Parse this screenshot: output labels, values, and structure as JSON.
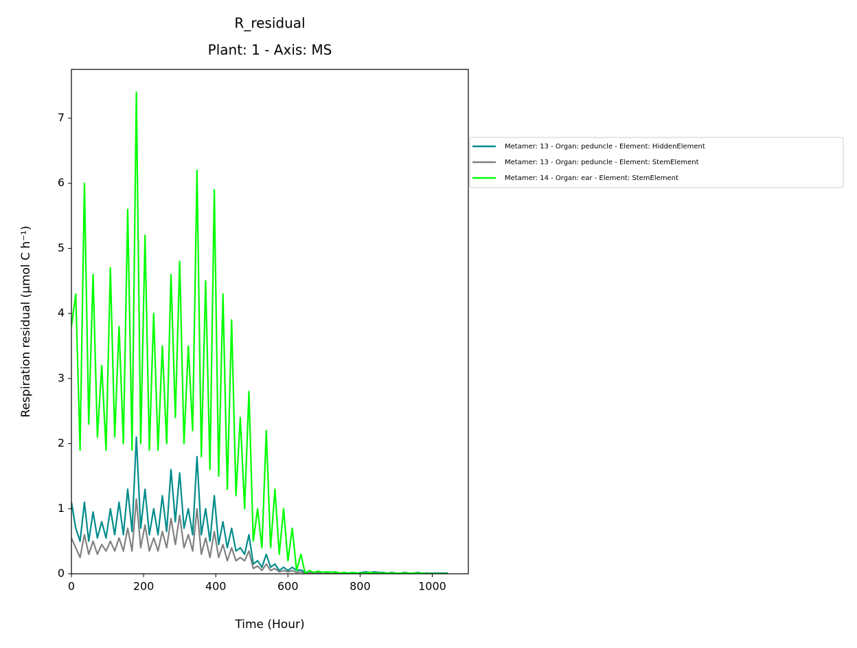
{
  "chart_data": {
    "type": "line",
    "title": "R_residual",
    "subtitle": "Plant: 1 - Axis: MS",
    "x_label": "Time (Hour)",
    "y_label": "Respiration residual (µmol C h⁻¹)",
    "xlim": [
      0,
      1100
    ],
    "ylim": [
      0,
      7.75
    ],
    "xticks": [
      0,
      200,
      400,
      600,
      800,
      1000
    ],
    "yticks": [
      0,
      1,
      2,
      3,
      4,
      5,
      6,
      7
    ],
    "grid": false,
    "legend": "right",
    "x": [
      0,
      12,
      24,
      36,
      48,
      60,
      72,
      84,
      96,
      108,
      120,
      132,
      144,
      156,
      168,
      180,
      192,
      204,
      216,
      228,
      240,
      252,
      264,
      276,
      288,
      300,
      312,
      324,
      336,
      348,
      360,
      372,
      384,
      396,
      408,
      420,
      432,
      444,
      456,
      468,
      480,
      492,
      504,
      516,
      528,
      540,
      552,
      564,
      576,
      588,
      600,
      612,
      624,
      636,
      648,
      660,
      672,
      684,
      696,
      708,
      720,
      732,
      744,
      756,
      768,
      780,
      792,
      804,
      816,
      828,
      840,
      852,
      864,
      876,
      888,
      900,
      912,
      924,
      936,
      948,
      960,
      972,
      984,
      996,
      1008,
      1020,
      1032,
      1044
    ],
    "series": [
      {
        "name": "Metamer: 13 - Organ: peduncle - Element: HiddenElement",
        "color": "#008b8b",
        "values": [
          1.1,
          0.7,
          0.5,
          1.1,
          0.5,
          0.95,
          0.55,
          0.8,
          0.55,
          1.0,
          0.6,
          1.1,
          0.6,
          1.3,
          0.65,
          2.1,
          0.7,
          1.3,
          0.6,
          1.0,
          0.6,
          1.2,
          0.65,
          1.6,
          0.8,
          1.55,
          0.7,
          1.0,
          0.6,
          1.8,
          0.6,
          1.0,
          0.5,
          1.2,
          0.45,
          0.8,
          0.4,
          0.7,
          0.35,
          0.4,
          0.3,
          0.6,
          0.15,
          0.2,
          0.1,
          0.3,
          0.1,
          0.15,
          0.05,
          0.1,
          0.05,
          0.1,
          0.05,
          0.06,
          0.02,
          0.04,
          0.02,
          0.03,
          0.02,
          0.03,
          0.02,
          0.03,
          0.01,
          0.02,
          0.01,
          0.02,
          0.01,
          0.02,
          0.03,
          0.02,
          0.03,
          0.02,
          0.02,
          0.01,
          0.02,
          0.01,
          0.01,
          0.02,
          0.01,
          0.01,
          0.02,
          0.01,
          0.01,
          0.01,
          0.01,
          0.01,
          0.01,
          0.01
        ]
      },
      {
        "name": "Metamer: 13 - Organ: peduncle - Element: StemElement",
        "color": "#808080",
        "values": [
          0.55,
          0.4,
          0.25,
          0.6,
          0.3,
          0.5,
          0.3,
          0.45,
          0.35,
          0.5,
          0.35,
          0.55,
          0.35,
          0.7,
          0.35,
          1.15,
          0.4,
          0.75,
          0.35,
          0.55,
          0.35,
          0.65,
          0.4,
          0.85,
          0.45,
          0.9,
          0.4,
          0.6,
          0.35,
          1.0,
          0.3,
          0.55,
          0.25,
          0.65,
          0.25,
          0.45,
          0.2,
          0.4,
          0.2,
          0.25,
          0.2,
          0.35,
          0.08,
          0.12,
          0.05,
          0.15,
          0.05,
          0.08,
          0.03,
          0.05,
          0.03,
          0.05,
          0.02,
          0.03,
          0.01,
          0.02,
          0.01,
          0.01,
          0.01,
          0.01,
          0.01,
          0.01,
          0.01,
          0.01,
          0.01,
          0.01,
          0.01,
          0.01,
          0.01,
          0.01,
          0.01,
          0.01,
          0,
          0,
          0,
          0,
          0,
          0,
          0,
          0,
          0,
          0,
          0,
          0,
          0,
          0,
          0,
          0
        ]
      },
      {
        "name": "Metamer: 14 - Organ: ear - Element: StemElement",
        "color": "#00ff00",
        "values": [
          3.8,
          4.3,
          1.9,
          6.0,
          2.3,
          4.6,
          2.1,
          3.2,
          1.9,
          4.7,
          2.1,
          3.8,
          2.0,
          5.6,
          1.9,
          7.4,
          2.0,
          5.2,
          1.9,
          4.0,
          1.9,
          3.5,
          2.0,
          4.6,
          2.4,
          4.8,
          2.0,
          3.5,
          2.2,
          6.2,
          1.8,
          4.5,
          1.6,
          5.9,
          1.5,
          4.3,
          1.3,
          3.9,
          1.2,
          2.4,
          1.0,
          2.8,
          0.5,
          1.0,
          0.4,
          2.2,
          0.4,
          1.3,
          0.3,
          1.0,
          0.2,
          0.7,
          0.05,
          0.3,
          0.0,
          0.05,
          0.02,
          0.04,
          0.02,
          0.03,
          0.02,
          0.03,
          0.01,
          0.02,
          0.01,
          0.02,
          0.01,
          0.01,
          0.01,
          0.02,
          0.01,
          0.01,
          0.01,
          0.01,
          0.01,
          0.01,
          0.01,
          0.01,
          0.01,
          0.01,
          0.01,
          0.01,
          0,
          0,
          0,
          0,
          0,
          0
        ]
      }
    ]
  }
}
